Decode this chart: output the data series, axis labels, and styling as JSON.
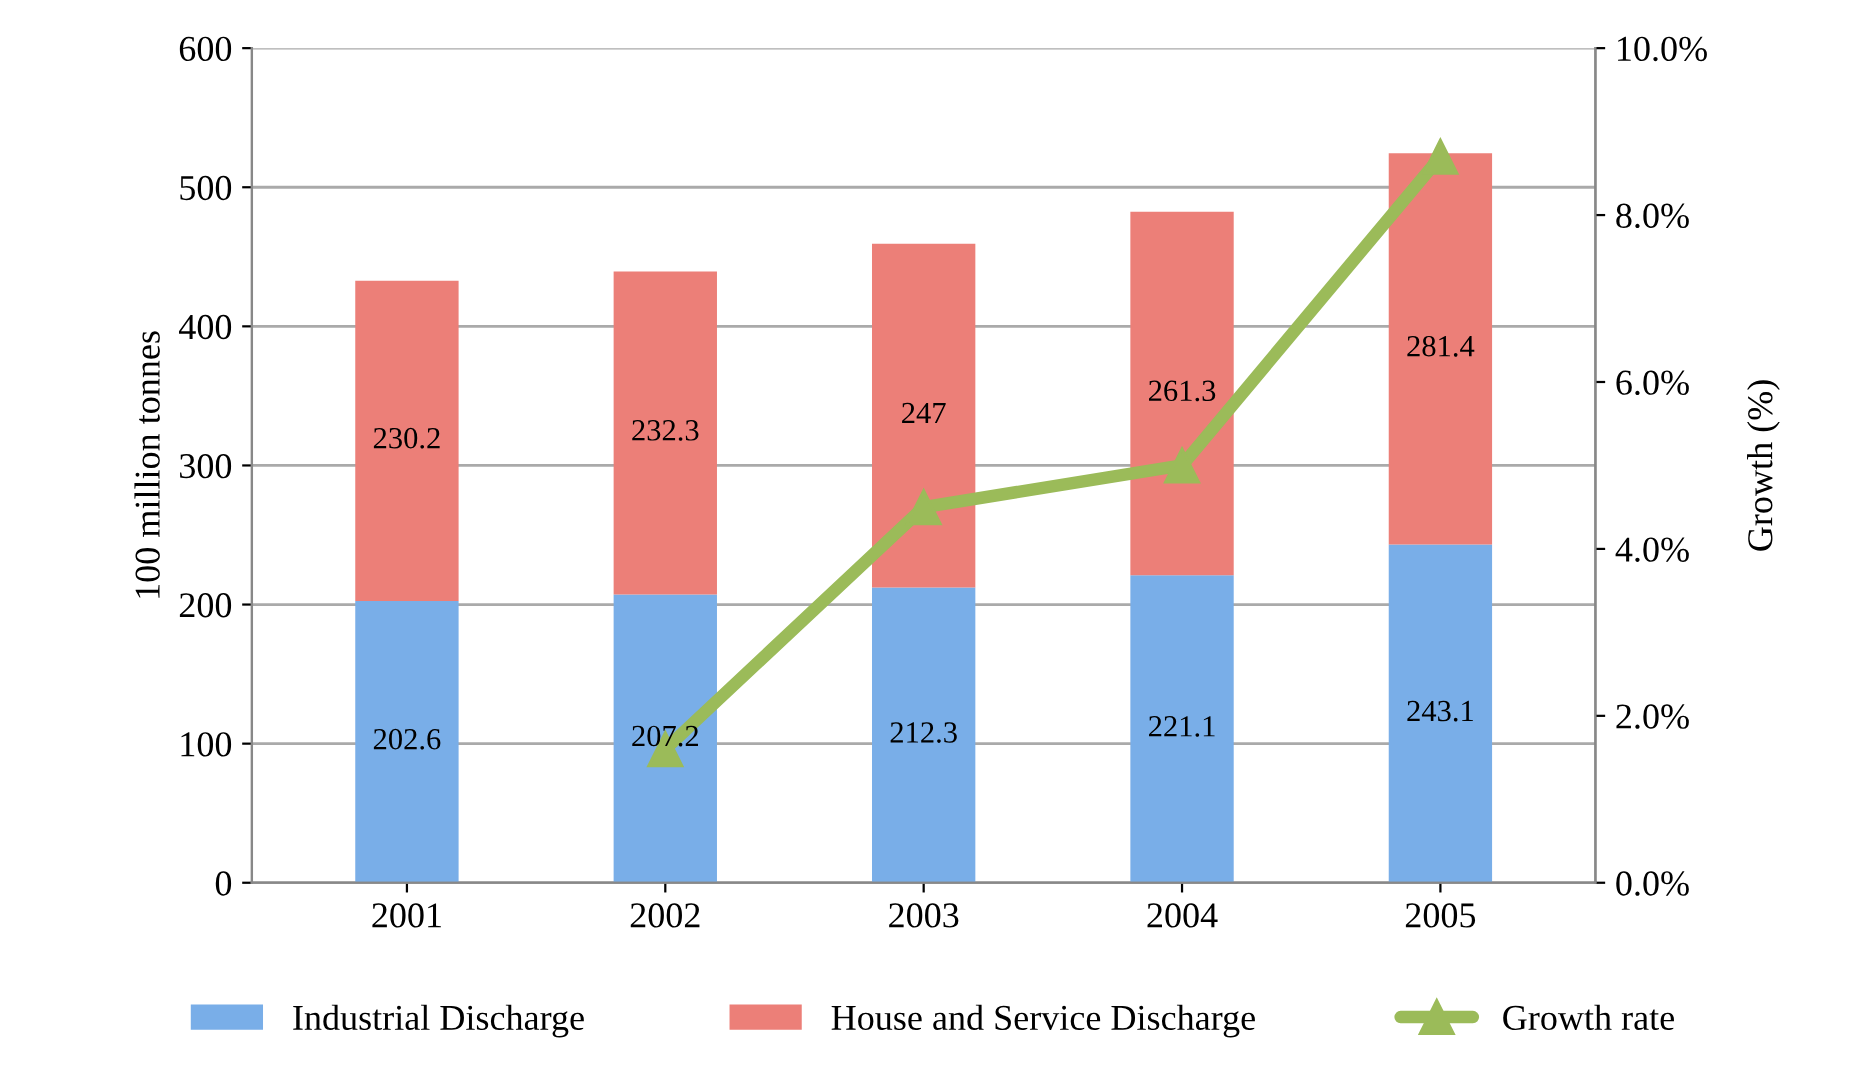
{
  "chart_data": {
    "type": "bar",
    "stacked": true,
    "ylabel": "100 million tonnes",
    "y2label": "Growth (%)",
    "categories": [
      "2001",
      "2002",
      "2003",
      "2004",
      "2005"
    ],
    "series": [
      {
        "name": "Industrial Discharge",
        "color": "#79aee8",
        "values": [
          202.6,
          207.2,
          212.3,
          221.1,
          243.1
        ],
        "value_labels": [
          "202.6",
          "207.2",
          "212.3",
          "221.1",
          "243.1"
        ]
      },
      {
        "name": "House and Service Discharge",
        "color": "#ec7f78",
        "values": [
          230.2,
          232.3,
          247,
          261.3,
          281.4
        ],
        "value_labels": [
          "230.2",
          "232.3",
          "247",
          "261.3",
          "281.4"
        ]
      },
      {
        "name": "Growth rate",
        "type": "line",
        "axis": "y2",
        "color": "#9bbb59",
        "marker": "triangle",
        "values": [
          null,
          1.6,
          4.5,
          5.0,
          8.7
        ]
      }
    ],
    "ylim": [
      0,
      600
    ],
    "yticks": [
      0,
      100,
      200,
      300,
      400,
      500,
      600
    ],
    "y2lim": [
      0,
      10
    ],
    "y2ticks": [
      {
        "value": 0,
        "label": "0.0%"
      },
      {
        "value": 2,
        "label": "2.0%"
      },
      {
        "value": 4,
        "label": "4.0%"
      },
      {
        "value": 6,
        "label": "6.0%"
      },
      {
        "value": 8,
        "label": "8.0%"
      },
      {
        "value": 10,
        "label": "10.0%"
      }
    ],
    "grid": "y",
    "legend": "bottom"
  }
}
